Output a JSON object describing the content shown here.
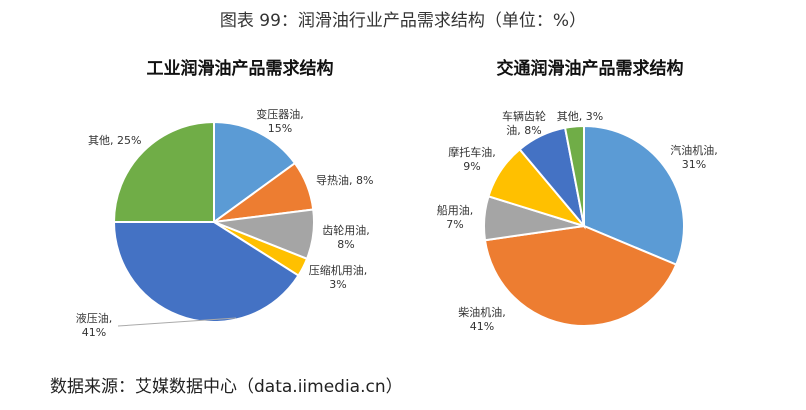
{
  "figure_title": "图表 99：润滑油行业产品需求结构（单位：%）",
  "source": "数据来源：艾媒数据中心（data.iimedia.cn）",
  "chart_data": [
    {
      "type": "pie",
      "title": "工业润滑油产品需求结构",
      "slices": [
        {
          "name": "变压器油",
          "value": 15,
          "label": [
            "变压器油,",
            "15%"
          ],
          "color": "#5b9bd5"
        },
        {
          "name": "导热油",
          "value": 8,
          "label": [
            "导热油, 8%"
          ],
          "color": "#ed7d31"
        },
        {
          "name": "齿轮用油",
          "value": 8,
          "label": [
            "齿轮用油,",
            "8%"
          ],
          "color": "#a5a5a5"
        },
        {
          "name": "压缩机用油",
          "value": 3,
          "label": [
            "压缩机用油,",
            "3%"
          ],
          "color": "#ffc000"
        },
        {
          "name": "液压油",
          "value": 41,
          "label": [
            "液压油,",
            "41%"
          ],
          "color": "#4472c4"
        },
        {
          "name": "其他",
          "value": 25,
          "label": [
            "其他, 25%"
          ],
          "color": "#70ad47"
        }
      ]
    },
    {
      "type": "pie",
      "title": "交通润滑油产品需求结构",
      "slices": [
        {
          "name": "汽油机油",
          "value": 31,
          "label": [
            "汽油机油,",
            "31%"
          ],
          "color": "#5b9bd5"
        },
        {
          "name": "柴油机油",
          "value": 41,
          "label": [
            "柴油机油,",
            "41%"
          ],
          "color": "#ed7d31"
        },
        {
          "name": "船用油",
          "value": 7,
          "label": [
            "船用油,",
            "7%"
          ],
          "color": "#a5a5a5"
        },
        {
          "name": "摩托车油",
          "value": 9,
          "label": [
            "摩托车油,",
            "9%"
          ],
          "color": "#ffc000"
        },
        {
          "name": "车辆齿轮油",
          "value": 8,
          "label": [
            "车辆齿轮",
            "油, 8%"
          ],
          "color": "#4472c4"
        },
        {
          "name": "其他",
          "value": 3,
          "label": [
            "其他, 3%"
          ],
          "color": "#70ad47"
        }
      ]
    }
  ]
}
